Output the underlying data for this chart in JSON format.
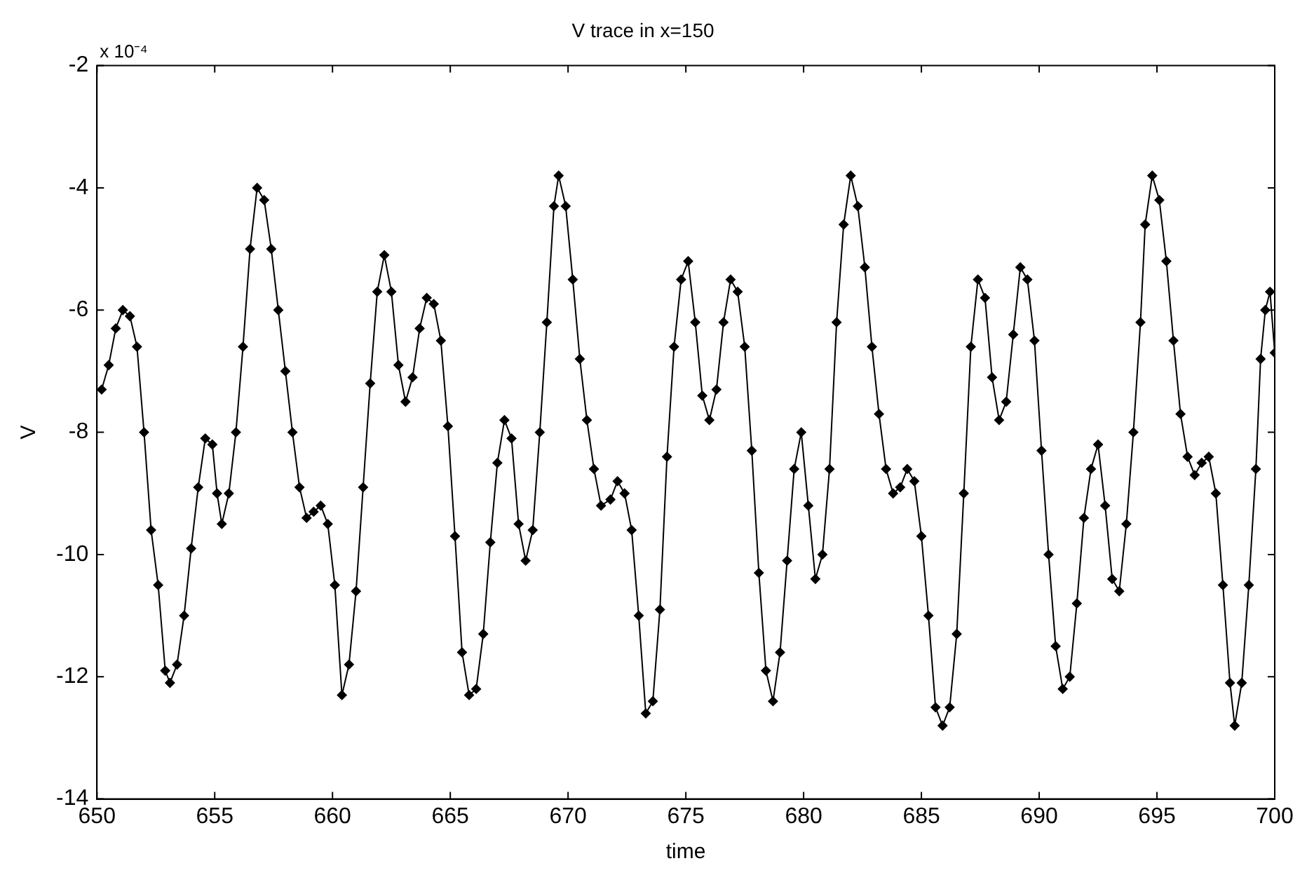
{
  "chart_data": {
    "type": "line",
    "title": "V trace in x=150",
    "xlabel": "time",
    "ylabel": "V",
    "annotations": [
      "x 10⁻⁴"
    ],
    "marker": "diamond",
    "line_style": "solid",
    "grid": false,
    "legend": false,
    "xlim": [
      650,
      700
    ],
    "xticks": [
      650,
      655,
      660,
      665,
      670,
      675,
      680,
      685,
      690,
      695,
      700
    ],
    "ylim": [
      -14,
      -2
    ],
    "yticks": [
      -14,
      -12,
      -10,
      -8,
      -6,
      -4,
      -2
    ],
    "series": [
      {
        "color": "#000000",
        "x": [
          650.2,
          650.5,
          650.8,
          651.1,
          651.4,
          651.7,
          652,
          652.3,
          652.6,
          652.9,
          653.1,
          653.4,
          653.7,
          654,
          654.3,
          654.6,
          654.9,
          655.1,
          655.3,
          655.6,
          655.9,
          656.2,
          656.5,
          656.8,
          657.1,
          657.4,
          657.7,
          658,
          658.3,
          658.6,
          658.9,
          659.2,
          659.5,
          659.8,
          660.1,
          660.4,
          660.7,
          661,
          661.3,
          661.6,
          661.9,
          662.2,
          662.5,
          662.8,
          663.1,
          663.4,
          663.7,
          664,
          664.3,
          664.6,
          664.9,
          665.2,
          665.5,
          665.8,
          666.1,
          666.4,
          666.7,
          667,
          667.3,
          667.6,
          667.9,
          668.2,
          668.5,
          668.8,
          669.1,
          669.4,
          669.6,
          669.9,
          670.2,
          670.5,
          670.8,
          671.1,
          671.4,
          671.8,
          672.1,
          672.4,
          672.7,
          673,
          673.3,
          673.6,
          673.9,
          674.2,
          674.5,
          674.8,
          675.1,
          675.4,
          675.7,
          676,
          676.3,
          676.6,
          676.9,
          677.2,
          677.5,
          677.8,
          678.1,
          678.4,
          678.7,
          679,
          679.3,
          679.6,
          679.9,
          680.2,
          680.5,
          680.8,
          681.1,
          681.4,
          681.7,
          682,
          682.3,
          682.6,
          682.9,
          683.2,
          683.5,
          683.8,
          684.1,
          684.4,
          684.7,
          685,
          685.3,
          685.6,
          685.9,
          686.2,
          686.5,
          686.8,
          687.1,
          687.4,
          687.7,
          688,
          688.3,
          688.6,
          688.9,
          689.2,
          689.5,
          689.8,
          690.1,
          690.4,
          690.7,
          691,
          691.3,
          691.6,
          691.9,
          692.2,
          692.5,
          692.8,
          693.1,
          693.4,
          693.7,
          694,
          694.3,
          694.5,
          694.8,
          695.1,
          695.4,
          695.7,
          696,
          696.3,
          696.6,
          696.9,
          697.2,
          697.5,
          697.8,
          698.1,
          698.3,
          698.6,
          698.9,
          699.2,
          699.4,
          699.6,
          699.8,
          700
        ],
        "values": [
          -7.3,
          -6.9,
          -6.3,
          -6.0,
          -6.1,
          -6.6,
          -8.0,
          -9.6,
          -10.5,
          -11.9,
          -12.1,
          -11.8,
          -11.0,
          -9.9,
          -8.9,
          -8.1,
          -8.2,
          -9.0,
          -9.5,
          -9.0,
          -8.0,
          -6.6,
          -5.0,
          -4.0,
          -4.2,
          -5.0,
          -6.0,
          -7.0,
          -8.0,
          -8.9,
          -9.4,
          -9.3,
          -9.2,
          -9.5,
          -10.5,
          -12.3,
          -11.8,
          -10.6,
          -8.9,
          -7.2,
          -5.7,
          -5.1,
          -5.7,
          -6.9,
          -7.5,
          -7.1,
          -6.3,
          -5.8,
          -5.9,
          -6.5,
          -7.9,
          -9.7,
          -11.6,
          -12.3,
          -12.2,
          -11.3,
          -9.8,
          -8.5,
          -7.8,
          -8.1,
          -9.5,
          -10.1,
          -9.6,
          -8.0,
          -6.2,
          -4.3,
          -3.8,
          -4.3,
          -5.5,
          -6.8,
          -7.8,
          -8.6,
          -9.2,
          -9.1,
          -8.8,
          -9.0,
          -9.6,
          -11.0,
          -12.6,
          -12.4,
          -10.9,
          -8.4,
          -6.6,
          -5.5,
          -5.2,
          -6.2,
          -7.4,
          -7.8,
          -7.3,
          -6.2,
          -5.5,
          -5.7,
          -6.6,
          -8.3,
          -10.3,
          -11.9,
          -12.4,
          -11.6,
          -10.1,
          -8.6,
          -8.0,
          -9.2,
          -10.4,
          -10.0,
          -8.6,
          -6.2,
          -4.6,
          -3.8,
          -4.3,
          -5.3,
          -6.6,
          -7.7,
          -8.6,
          -9.0,
          -8.9,
          -8.6,
          -8.8,
          -9.7,
          -11.0,
          -12.5,
          -12.8,
          -12.5,
          -11.3,
          -9.0,
          -6.6,
          -5.5,
          -5.8,
          -7.1,
          -7.8,
          -7.5,
          -6.4,
          -5.3,
          -5.5,
          -6.5,
          -8.3,
          -10.0,
          -11.5,
          -12.2,
          -12.0,
          -10.8,
          -9.4,
          -8.6,
          -8.2,
          -9.2,
          -10.4,
          -10.6,
          -9.5,
          -8.0,
          -6.2,
          -4.6,
          -3.8,
          -4.2,
          -5.2,
          -6.5,
          -7.7,
          -8.4,
          -8.7,
          -8.5,
          -8.4,
          -9.0,
          -10.5,
          -12.1,
          -12.8,
          -12.1,
          -10.5,
          -8.6,
          -6.8,
          -6.0,
          -5.7,
          -6.7
        ]
      }
    ]
  }
}
